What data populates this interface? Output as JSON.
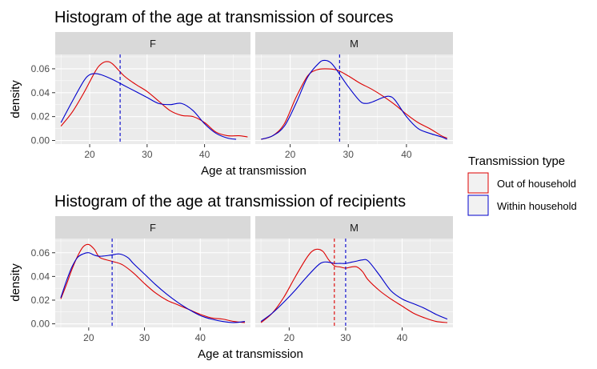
{
  "chart_data": [
    {
      "type": "line",
      "subtype": "density",
      "title": "Histogram of the age at transmission of sources",
      "xlabel": "Age at transmission",
      "ylabel": "density",
      "xlim": [
        14,
        48
      ],
      "ylim": [
        -0.003,
        0.072
      ],
      "x_ticks": [
        20,
        30,
        40
      ],
      "y_ticks": [
        0.0,
        0.02,
        0.04,
        0.06
      ],
      "y_tick_labels": [
        "0.00",
        "0.02",
        "0.04",
        "0.06"
      ],
      "panels": [
        {
          "label": "F",
          "series": [
            {
              "name": "Out of household",
              "x": [
                15,
                17,
                19,
                21,
                22,
                23,
                24,
                26,
                28,
                30,
                32,
                34,
                36,
                38,
                40,
                42,
                44,
                46,
                47.5
              ],
              "y": [
                0.012,
                0.024,
                0.04,
                0.058,
                0.064,
                0.066,
                0.064,
                0.054,
                0.047,
                0.041,
                0.033,
                0.025,
                0.021,
                0.02,
                0.015,
                0.007,
                0.004,
                0.004,
                0.003
              ]
            },
            {
              "name": "Within household",
              "x": [
                15,
                17,
                19,
                20,
                21,
                22,
                24,
                26,
                28,
                30,
                32,
                34,
                36,
                38,
                40,
                42,
                44,
                45.5
              ],
              "y": [
                0.015,
                0.033,
                0.05,
                0.055,
                0.056,
                0.055,
                0.051,
                0.046,
                0.041,
                0.036,
                0.031,
                0.03,
                0.031,
                0.025,
                0.014,
                0.006,
                0.002,
                0.001
              ]
            }
          ],
          "mean_lines": [
            {
              "series": "Within household",
              "x": 25.3
            }
          ]
        },
        {
          "label": "M",
          "series": [
            {
              "name": "Out of household",
              "x": [
                15,
                17,
                19,
                21,
                23,
                24.5,
                26,
                28,
                30,
                32,
                34,
                36,
                38,
                40,
                42,
                44,
                46,
                47
              ],
              "y": [
                0.001,
                0.004,
                0.014,
                0.036,
                0.054,
                0.059,
                0.06,
                0.059,
                0.054,
                0.048,
                0.043,
                0.037,
                0.03,
                0.022,
                0.015,
                0.01,
                0.004,
                0.002
              ]
            },
            {
              "name": "Within household",
              "x": [
                15,
                17,
                19,
                21,
                23,
                25,
                26,
                27,
                28,
                30,
                32,
                33,
                34,
                36,
                37,
                38,
                40,
                42,
                44,
                46,
                47
              ],
              "y": [
                0.001,
                0.004,
                0.012,
                0.031,
                0.053,
                0.065,
                0.067,
                0.065,
                0.059,
                0.045,
                0.033,
                0.031,
                0.032,
                0.036,
                0.037,
                0.034,
                0.02,
                0.01,
                0.006,
                0.003,
                0.001
              ]
            }
          ],
          "mean_lines": [
            {
              "series": "Within household",
              "x": 28.5
            }
          ]
        }
      ]
    },
    {
      "type": "line",
      "subtype": "density",
      "title": "Histogram of the age at transmission of recipients",
      "xlabel": "Age at transmission",
      "ylabel": "density",
      "xlim": [
        14,
        49
      ],
      "ylim": [
        -0.003,
        0.072
      ],
      "x_ticks": [
        20,
        30,
        40
      ],
      "y_ticks": [
        0.0,
        0.02,
        0.04,
        0.06
      ],
      "y_tick_labels": [
        "0.00",
        "0.02",
        "0.04",
        "0.06"
      ],
      "panels": [
        {
          "label": "F",
          "series": [
            {
              "name": "Out of household",
              "x": [
                15,
                16,
                17,
                18,
                19,
                20,
                21,
                22,
                24,
                26,
                28,
                30,
                32,
                34,
                36,
                38,
                40,
                42,
                44,
                46,
                48
              ],
              "y": [
                0.021,
                0.033,
                0.046,
                0.057,
                0.065,
                0.067,
                0.063,
                0.056,
                0.053,
                0.05,
                0.043,
                0.034,
                0.026,
                0.02,
                0.016,
                0.012,
                0.008,
                0.005,
                0.004,
                0.002,
                0.001
              ]
            },
            {
              "name": "Within household",
              "x": [
                15,
                16,
                17,
                18,
                19,
                20,
                21,
                22,
                24,
                25.5,
                27,
                28,
                30,
                32,
                34,
                36,
                38,
                40,
                42,
                44,
                46,
                48
              ],
              "y": [
                0.022,
                0.036,
                0.048,
                0.056,
                0.059,
                0.06,
                0.058,
                0.057,
                0.058,
                0.059,
                0.056,
                0.051,
                0.042,
                0.033,
                0.025,
                0.018,
                0.012,
                0.007,
                0.004,
                0.002,
                0.001,
                0.002
              ]
            }
          ],
          "mean_lines": [
            {
              "series": "Within household",
              "x": 24.2
            }
          ]
        },
        {
          "label": "M",
          "series": [
            {
              "name": "Out of household",
              "x": [
                15,
                17,
                19,
                21,
                23,
                24,
                25,
                26,
                27,
                28,
                29,
                30,
                31,
                32,
                33,
                34,
                36,
                38,
                40,
                42,
                44,
                46,
                48
              ],
              "y": [
                0.001,
                0.009,
                0.022,
                0.039,
                0.055,
                0.061,
                0.063,
                0.061,
                0.054,
                0.049,
                0.048,
                0.047,
                0.048,
                0.048,
                0.044,
                0.037,
                0.028,
                0.021,
                0.015,
                0.009,
                0.005,
                0.002,
                0.001
              ]
            },
            {
              "name": "Within household",
              "x": [
                15,
                17,
                19,
                21,
                23,
                25,
                26,
                27,
                28,
                29,
                30,
                31,
                32,
                33,
                34,
                36,
                38,
                40,
                42,
                44,
                46,
                48
              ],
              "y": [
                0.002,
                0.009,
                0.018,
                0.028,
                0.039,
                0.049,
                0.052,
                0.052,
                0.051,
                0.051,
                0.051,
                0.052,
                0.053,
                0.054,
                0.053,
                0.041,
                0.028,
                0.021,
                0.017,
                0.013,
                0.008,
                0.004
              ]
            }
          ],
          "mean_lines": [
            {
              "series": "Out of household",
              "x": 28.0
            },
            {
              "series": "Within household",
              "x": 30.0
            }
          ]
        }
      ]
    }
  ],
  "legend": {
    "title": "Transmission type",
    "placement": "right",
    "items": [
      {
        "label": "Out of household",
        "color": "#dd0000"
      },
      {
        "label": "Within household",
        "color": "#0000cc"
      }
    ]
  },
  "colors": {
    "Out of household": "#dd0000",
    "Within household": "#0000cc",
    "panel_bg": "#ebebeb",
    "grid": "#ffffff",
    "strip_bg": "#d9d9d9"
  }
}
